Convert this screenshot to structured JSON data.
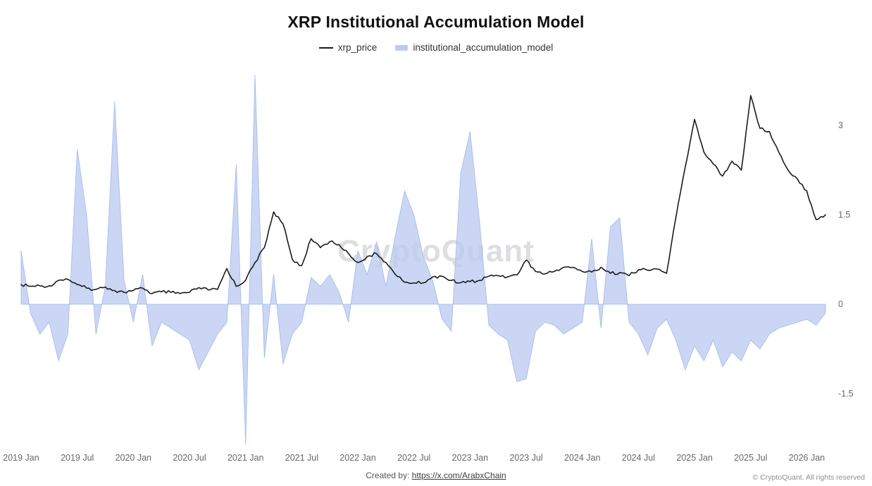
{
  "title": "XRP Institutional Accumulation Model",
  "legend": {
    "series1": "xrp_price",
    "series2": "institutional_accumulation_model"
  },
  "watermark": "CryptoQuant",
  "footer": {
    "created_by_label": "Created by:",
    "created_by_link": "https://x.com/ArabxChain",
    "copyright": "© CryptoQuant. All rights reserved"
  },
  "colors": {
    "price_line": "#1b1b1b",
    "area_fill": "#bdccf0",
    "area_edge": "#a3b8e9",
    "axis_text": "#65686c"
  },
  "chart_data": {
    "type": "line+area",
    "title": "XRP Institutional Accumulation Model",
    "xlabel": "",
    "ylabel": "",
    "grid": false,
    "legend_position": "top-center",
    "y_axis_side": "right",
    "ylim": [
      -2.6,
      3.95
    ],
    "y_ticks": [
      3,
      1.5,
      0,
      -1.5
    ],
    "x_tick_every": 6,
    "x_tick_labels": [
      "2019 Jan",
      "2019 Jul",
      "2020 Jan",
      "2020 Jul",
      "2021 Jan",
      "2021 Jul",
      "2022 Jan",
      "2022 Jul",
      "2023 Jan",
      "2023 Jul",
      "2024 Jan",
      "2024 Jul",
      "2025 Jan",
      "2025 Jul",
      "2026 Jan"
    ],
    "x": [
      "2019-01",
      "2019-02",
      "2019-03",
      "2019-04",
      "2019-05",
      "2019-06",
      "2019-07",
      "2019-08",
      "2019-09",
      "2019-10",
      "2019-11",
      "2019-12",
      "2020-01",
      "2020-02",
      "2020-03",
      "2020-04",
      "2020-05",
      "2020-06",
      "2020-07",
      "2020-08",
      "2020-09",
      "2020-10",
      "2020-11",
      "2020-12",
      "2021-01",
      "2021-02",
      "2021-03",
      "2021-04",
      "2021-05",
      "2021-06",
      "2021-07",
      "2021-08",
      "2021-09",
      "2021-10",
      "2021-11",
      "2021-12",
      "2022-01",
      "2022-02",
      "2022-03",
      "2022-04",
      "2022-05",
      "2022-06",
      "2022-07",
      "2022-08",
      "2022-09",
      "2022-10",
      "2022-11",
      "2022-12",
      "2023-01",
      "2023-02",
      "2023-03",
      "2023-04",
      "2023-05",
      "2023-06",
      "2023-07",
      "2023-08",
      "2023-09",
      "2023-10",
      "2023-11",
      "2023-12",
      "2024-01",
      "2024-02",
      "2024-03",
      "2024-04",
      "2024-05",
      "2024-06",
      "2024-07",
      "2024-08",
      "2024-09",
      "2024-10",
      "2024-11",
      "2024-12",
      "2025-01",
      "2025-02",
      "2025-03",
      "2025-04",
      "2025-05",
      "2025-06",
      "2025-07",
      "2025-08",
      "2025-09",
      "2025-10",
      "2025-11",
      "2025-12",
      "2026-01",
      "2026-02",
      "2026-03"
    ],
    "series": [
      {
        "name": "xrp_price",
        "type": "line",
        "values": [
          0.33,
          0.3,
          0.31,
          0.31,
          0.4,
          0.42,
          0.33,
          0.27,
          0.25,
          0.29,
          0.23,
          0.2,
          0.23,
          0.27,
          0.18,
          0.21,
          0.2,
          0.18,
          0.2,
          0.28,
          0.24,
          0.25,
          0.6,
          0.3,
          0.4,
          0.7,
          0.95,
          1.55,
          1.35,
          0.75,
          0.65,
          1.1,
          0.95,
          1.05,
          1.0,
          0.85,
          0.7,
          0.8,
          0.85,
          0.7,
          0.5,
          0.37,
          0.36,
          0.36,
          0.46,
          0.47,
          0.4,
          0.36,
          0.38,
          0.4,
          0.47,
          0.48,
          0.46,
          0.49,
          0.74,
          0.55,
          0.51,
          0.55,
          0.62,
          0.62,
          0.55,
          0.54,
          0.62,
          0.52,
          0.53,
          0.48,
          0.58,
          0.57,
          0.59,
          0.52,
          1.45,
          2.3,
          3.1,
          2.55,
          2.35,
          2.15,
          2.4,
          2.25,
          3.5,
          2.95,
          2.9,
          2.55,
          2.25,
          2.1,
          1.9,
          1.42,
          1.5
        ]
      },
      {
        "name": "institutional_accumulation_model",
        "type": "area",
        "values": [
          0.9,
          -0.15,
          -0.5,
          -0.3,
          -0.95,
          -0.5,
          2.6,
          1.5,
          -0.5,
          0.3,
          3.4,
          0.4,
          -0.3,
          0.5,
          -0.7,
          -0.3,
          -0.4,
          -0.5,
          -0.6,
          -1.1,
          -0.8,
          -0.5,
          -0.3,
          2.35,
          -2.35,
          3.85,
          -0.9,
          0.5,
          -1.0,
          -0.5,
          -0.3,
          0.45,
          0.3,
          0.5,
          0.2,
          -0.3,
          0.9,
          0.5,
          1.05,
          0.3,
          1.15,
          1.9,
          1.5,
          0.8,
          0.4,
          -0.25,
          -0.45,
          2.2,
          2.9,
          1.4,
          -0.35,
          -0.5,
          -0.6,
          -1.3,
          -1.25,
          -0.45,
          -0.3,
          -0.35,
          -0.5,
          -0.4,
          -0.3,
          1.1,
          -0.4,
          1.3,
          1.45,
          -0.3,
          -0.5,
          -0.85,
          -0.4,
          -0.25,
          -0.6,
          -1.1,
          -0.7,
          -0.95,
          -0.6,
          -1.05,
          -0.8,
          -0.95,
          -0.6,
          -0.75,
          -0.5,
          -0.4,
          -0.35,
          -0.3,
          -0.25,
          -0.35,
          -0.15
        ]
      }
    ]
  }
}
